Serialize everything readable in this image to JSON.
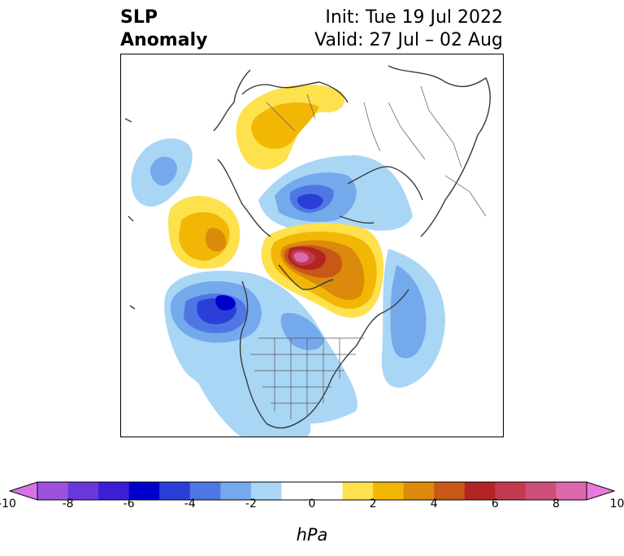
{
  "title": {
    "left_line1": "SLP",
    "left_line2": "Anomaly",
    "right_line1": "Init: Tue 19 Jul 2022",
    "right_line2": "Valid: 27 Jul – 02 Aug"
  },
  "colorbar": {
    "unit": "hPa",
    "min": -10,
    "max": 10,
    "step": 1,
    "tick_labels": [
      "-10",
      "-8",
      "-6",
      "-4",
      "-2",
      "0",
      "2",
      "4",
      "6",
      "8",
      "10"
    ],
    "extend": "both",
    "colors": [
      "#d873e6",
      "#9d52de",
      "#6a37d8",
      "#3c1ed6",
      "#0000cd",
      "#2a3fd8",
      "#4f77e4",
      "#74a9ec",
      "#a9d6f5",
      "#ffffff",
      "#ffffff",
      "#fde24d",
      "#f2b705",
      "#dc8a0c",
      "#c75818",
      "#b32424",
      "#c23a4e",
      "#cc4f7a",
      "#db69ad",
      "#e979dd"
    ]
  },
  "map": {
    "projection": "polar-stereographic",
    "features": [
      "coastlines",
      "country-borders",
      "us-state-borders"
    ]
  }
}
